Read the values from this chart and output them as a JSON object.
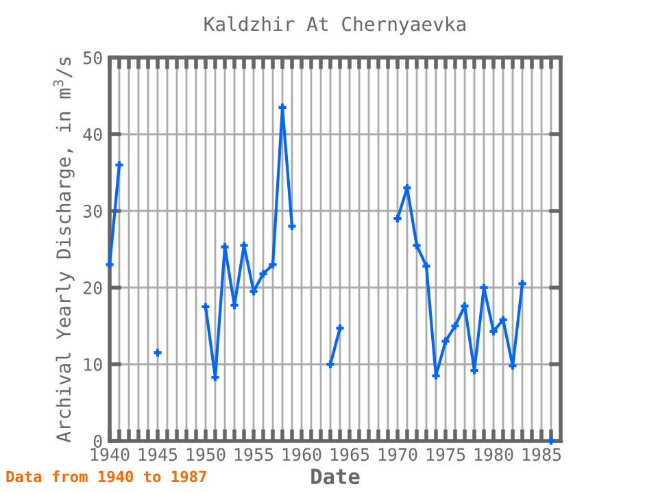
{
  "chart_data": {
    "type": "line",
    "title": "Kaldzhir At Chernyaevka",
    "xlabel": "Date",
    "ylabel": "Archival Yearly Discharge, in m$^{3}$/s",
    "x": [
      1940,
      1941,
      1942,
      1943,
      1944,
      1945,
      1946,
      1947,
      1948,
      1949,
      1950,
      1951,
      1952,
      1953,
      1954,
      1955,
      1956,
      1957,
      1958,
      1959,
      1960,
      1961,
      1962,
      1963,
      1964,
      1965,
      1966,
      1967,
      1968,
      1969,
      1970,
      1971,
      1972,
      1973,
      1974,
      1975,
      1976,
      1977,
      1978,
      1979,
      1980,
      1981,
      1982,
      1983,
      1984,
      1985,
      1986
    ],
    "series": [
      {
        "color": "#0066ff",
        "values": [
          23,
          36,
          null,
          null,
          null,
          11.5,
          null,
          null,
          null,
          null,
          17.5,
          8.3,
          25.3,
          17.7,
          25.5,
          19.5,
          21.8,
          23,
          43.5,
          28,
          null,
          null,
          null,
          10,
          14.7,
          null,
          null,
          null,
          null,
          null,
          29,
          33,
          25.5,
          22.8,
          8.5,
          13,
          15,
          17.6,
          9.2,
          20,
          14.3,
          15.8,
          9.8,
          20.5,
          null,
          null,
          0
        ]
      }
    ],
    "xlim": [
      1940,
      1987
    ],
    "ylim": [
      0,
      50
    ],
    "xticks": [
      1940,
      {
        "value": 1941,
        "label": null
      },
      {
        "value": 1942,
        "label": null
      },
      {
        "value": 1943,
        "label": null
      },
      {
        "value": 1944,
        "label": null
      },
      1945,
      {
        "value": 1946,
        "label": null
      },
      {
        "value": 1947,
        "label": null
      },
      {
        "value": 1948,
        "label": null
      },
      {
        "value": 1949,
        "label": null
      },
      1950,
      {
        "value": 1951,
        "label": null
      },
      {
        "value": 1952,
        "label": null
      },
      {
        "value": 1953,
        "label": null
      },
      {
        "value": 1954,
        "label": null
      },
      1955,
      {
        "value": 1956,
        "label": null
      },
      {
        "value": 1957,
        "label": null
      },
      {
        "value": 1958,
        "label": null
      },
      {
        "value": 1959,
        "label": null
      },
      1960,
      {
        "value": 1961,
        "label": null
      },
      {
        "value": 1962,
        "label": null
      },
      {
        "value": 1963,
        "label": null
      },
      {
        "value": 1964,
        "label": null
      },
      1965,
      {
        "value": 1966,
        "label": null
      },
      {
        "value": 1967,
        "label": null
      },
      {
        "value": 1968,
        "label": null
      },
      {
        "value": 1969,
        "label": null
      },
      1970,
      {
        "value": 1971,
        "label": null
      },
      {
        "value": 1972,
        "label": null
      },
      {
        "value": 1973,
        "label": null
      },
      {
        "value": 1974,
        "label": null
      },
      1975,
      {
        "value": 1976,
        "label": null
      },
      {
        "value": 1977,
        "label": null
      },
      {
        "value": 1978,
        "label": null
      },
      {
        "value": 1979,
        "label": null
      },
      1980,
      {
        "value": 1981,
        "label": null
      },
      {
        "value": 1982,
        "label": null
      },
      {
        "value": 1983,
        "label": null
      },
      {
        "value": 1984,
        "label": null
      },
      1985,
      {
        "value": 1986,
        "label": null
      }
    ],
    "yticks": [
      0,
      10,
      20,
      30,
      40,
      50
    ],
    "grid": true,
    "marker": "cross",
    "line_style": "solid",
    "annotations": [
      "Data from 1940 to 1987"
    ]
  }
}
